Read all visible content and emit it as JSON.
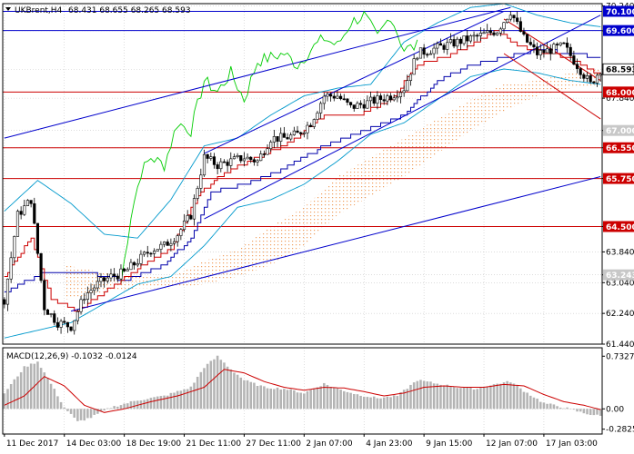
{
  "header": {
    "symbol": "UKBrent,H4",
    "ohlc": "68.431 68.655 68.265 68.593"
  },
  "colors": {
    "background": "#ffffff",
    "grid": "#c8c8c8",
    "candle": "#000000",
    "level_line": "#cc0000",
    "level_tag_red": "#cc0000",
    "level_tag_blue": "#0000cc",
    "level_tag_gray": "#c8c8c8",
    "current_price_tag": "#ffffff",
    "blue_channel": "#0000cc",
    "red_channel": "#cc0000",
    "chikou": "#00cc00",
    "bollinger": "#0099cc",
    "kijun": "#0000aa",
    "tenkan": "#cc0000",
    "cloud": "#f0b080",
    "macd_hist": "#b4b4b4",
    "macd_signal": "#cc0000"
  },
  "chart_data": [
    {
      "type": "candlestick",
      "title": "UKBrent,H4",
      "price_range": [
        61.44,
        70.3
      ],
      "y_ticks": [
        "70.240",
        "69.594",
        "68.593",
        "67.840",
        "67.000",
        "66.550",
        "65.750",
        "64.500",
        "63.840",
        "63.243",
        "63.040",
        "62.240",
        "61.440"
      ],
      "level_tags": [
        {
          "label": "70.100",
          "value": 70.1,
          "style": "blue"
        },
        {
          "label": "69.600",
          "value": 69.6,
          "style": "blue"
        },
        {
          "label": "68.593",
          "value": 68.593,
          "style": "current"
        },
        {
          "label": "68.000",
          "value": 68.0,
          "style": "red"
        },
        {
          "label": "67.000",
          "value": 67.0,
          "style": "gray"
        },
        {
          "label": "66.550",
          "value": 66.55,
          "style": "red"
        },
        {
          "label": "65.750",
          "value": 65.75,
          "style": "red"
        },
        {
          "label": "64.500",
          "value": 64.5,
          "style": "red"
        },
        {
          "label": "63.243",
          "value": 63.243,
          "style": "gray"
        }
      ],
      "horizontal_levels": [
        {
          "value": 70.1,
          "color": "#0000cc"
        },
        {
          "value": 69.6,
          "color": "#0000cc"
        },
        {
          "value": 68.0,
          "color": "#cc0000"
        },
        {
          "value": 66.55,
          "color": "#cc0000"
        },
        {
          "value": 65.75,
          "color": "#cc0000"
        },
        {
          "value": 64.5,
          "color": "#cc0000"
        }
      ],
      "x_labels": [
        "11 Dec 2017",
        "14 Dec 03:00",
        "18 Dec 19:00",
        "21 Dec 11:00",
        "27 Dec 11:00",
        "2 Jan 07:00",
        "4 Jan 23:00",
        "9 Jan 15:00",
        "12 Jan 07:00",
        "17 Jan 03:00"
      ],
      "x_label_bars": [
        0,
        18,
        36,
        54,
        72,
        90,
        108,
        126,
        144,
        162
      ],
      "bars": 180,
      "close_path": [
        [
          0,
          62.6
        ],
        [
          4,
          64.8
        ],
        [
          8,
          65.2
        ],
        [
          12,
          62.4
        ],
        [
          16,
          62.0
        ],
        [
          20,
          61.9
        ],
        [
          24,
          62.7
        ],
        [
          28,
          63.0
        ],
        [
          32,
          63.2
        ],
        [
          36,
          63.3
        ],
        [
          40,
          63.6
        ],
        [
          44,
          63.9
        ],
        [
          48,
          64.0
        ],
        [
          52,
          64.3
        ],
        [
          56,
          64.8
        ],
        [
          60,
          66.3
        ],
        [
          64,
          66.1
        ],
        [
          68,
          66.2
        ],
        [
          72,
          66.3
        ],
        [
          76,
          66.2
        ],
        [
          80,
          66.8
        ],
        [
          84,
          66.8
        ],
        [
          88,
          66.9
        ],
        [
          92,
          67.2
        ],
        [
          96,
          67.9
        ],
        [
          100,
          67.9
        ],
        [
          104,
          67.6
        ],
        [
          108,
          67.7
        ],
        [
          112,
          67.8
        ],
        [
          116,
          67.9
        ],
        [
          120,
          68.1
        ],
        [
          124,
          69.0
        ],
        [
          128,
          69.1
        ],
        [
          132,
          69.2
        ],
        [
          136,
          69.3
        ],
        [
          140,
          69.4
        ],
        [
          144,
          69.5
        ],
        [
          148,
          69.6
        ],
        [
          152,
          70.1
        ],
        [
          156,
          69.4
        ],
        [
          160,
          69.0
        ],
        [
          164,
          69.1
        ],
        [
          168,
          69.2
        ],
        [
          172,
          68.7
        ],
        [
          176,
          68.2
        ],
        [
          179,
          68.593
        ]
      ],
      "chikou_path": [
        [
          35,
          63.0
        ],
        [
          38,
          64.8
        ],
        [
          41,
          65.9
        ],
        [
          44,
          66.3
        ],
        [
          48,
          66.1
        ],
        [
          52,
          67.2
        ],
        [
          56,
          67.0
        ],
        [
          60,
          68.3
        ],
        [
          64,
          68.0
        ],
        [
          68,
          68.5
        ],
        [
          72,
          67.8
        ],
        [
          76,
          68.8
        ],
        [
          80,
          68.9
        ],
        [
          84,
          69.0
        ],
        [
          88,
          68.7
        ],
        [
          92,
          69.1
        ],
        [
          96,
          69.4
        ],
        [
          100,
          69.2
        ],
        [
          104,
          69.8
        ],
        [
          108,
          70.0
        ],
        [
          112,
          69.4
        ],
        [
          116,
          70.0
        ],
        [
          120,
          69.1
        ],
        [
          124,
          69.2
        ]
      ],
      "bb_upper_path": [
        [
          0,
          64.9
        ],
        [
          10,
          65.7
        ],
        [
          20,
          65.1
        ],
        [
          30,
          64.3
        ],
        [
          40,
          64.2
        ],
        [
          50,
          65.2
        ],
        [
          60,
          66.6
        ],
        [
          70,
          66.8
        ],
        [
          80,
          67.4
        ],
        [
          90,
          67.9
        ],
        [
          100,
          68.1
        ],
        [
          110,
          68.2
        ],
        [
          120,
          69.3
        ],
        [
          130,
          69.8
        ],
        [
          140,
          70.2
        ],
        [
          150,
          70.3
        ],
        [
          160,
          70.0
        ],
        [
          170,
          69.8
        ],
        [
          179,
          69.7
        ]
      ],
      "bb_lower_path": [
        [
          0,
          61.6
        ],
        [
          10,
          61.8
        ],
        [
          20,
          62.0
        ],
        [
          30,
          62.5
        ],
        [
          40,
          63.0
        ],
        [
          50,
          63.2
        ],
        [
          60,
          64.0
        ],
        [
          70,
          65.0
        ],
        [
          80,
          65.2
        ],
        [
          90,
          65.6
        ],
        [
          100,
          66.2
        ],
        [
          110,
          66.9
        ],
        [
          120,
          67.2
        ],
        [
          130,
          67.8
        ],
        [
          140,
          68.4
        ],
        [
          150,
          68.6
        ],
        [
          160,
          68.5
        ],
        [
          170,
          68.3
        ],
        [
          179,
          68.2
        ]
      ],
      "kijun_path": [
        [
          0,
          62.8
        ],
        [
          12,
          63.3
        ],
        [
          24,
          63.3
        ],
        [
          36,
          63.1
        ],
        [
          48,
          63.5
        ],
        [
          56,
          64.2
        ],
        [
          62,
          65.4
        ],
        [
          72,
          65.6
        ],
        [
          84,
          66.0
        ],
        [
          96,
          66.6
        ],
        [
          108,
          67.0
        ],
        [
          120,
          67.4
        ],
        [
          130,
          68.3
        ],
        [
          140,
          68.7
        ],
        [
          150,
          68.9
        ],
        [
          160,
          69.1
        ],
        [
          170,
          69.0
        ],
        [
          179,
          68.9
        ]
      ],
      "tenkan_path": [
        [
          0,
          63.2
        ],
        [
          8,
          64.2
        ],
        [
          14,
          62.6
        ],
        [
          22,
          62.3
        ],
        [
          30,
          62.8
        ],
        [
          40,
          63.4
        ],
        [
          50,
          63.9
        ],
        [
          58,
          65.3
        ],
        [
          66,
          65.9
        ],
        [
          76,
          66.3
        ],
        [
          86,
          66.7
        ],
        [
          96,
          67.4
        ],
        [
          106,
          67.4
        ],
        [
          116,
          67.8
        ],
        [
          124,
          68.7
        ],
        [
          132,
          68.9
        ],
        [
          140,
          69.2
        ],
        [
          148,
          69.6
        ],
        [
          154,
          69.2
        ],
        [
          162,
          69.0
        ],
        [
          170,
          68.9
        ],
        [
          179,
          68.4
        ]
      ],
      "cloud_top_path": [
        [
          18,
          63.5
        ],
        [
          30,
          63.3
        ],
        [
          40,
          63.2
        ],
        [
          50,
          63.2
        ],
        [
          60,
          63.6
        ],
        [
          70,
          63.9
        ],
        [
          80,
          64.5
        ],
        [
          90,
          65.0
        ],
        [
          100,
          65.8
        ],
        [
          110,
          66.3
        ],
        [
          120,
          66.8
        ],
        [
          130,
          67.3
        ],
        [
          140,
          67.8
        ],
        [
          150,
          68.2
        ],
        [
          160,
          68.3
        ],
        [
          170,
          68.5
        ],
        [
          179,
          68.6
        ]
      ],
      "cloud_bottom_path": [
        [
          18,
          62.6
        ],
        [
          30,
          62.8
        ],
        [
          40,
          62.9
        ],
        [
          50,
          62.9
        ],
        [
          60,
          63.0
        ],
        [
          70,
          63.2
        ],
        [
          80,
          63.5
        ],
        [
          90,
          64.0
        ],
        [
          100,
          64.8
        ],
        [
          110,
          65.3
        ],
        [
          120,
          65.8
        ],
        [
          130,
          66.4
        ],
        [
          140,
          67.0
        ],
        [
          150,
          67.5
        ],
        [
          160,
          67.9
        ],
        [
          170,
          68.1
        ],
        [
          179,
          68.2
        ]
      ],
      "blue_channel_lines": [
        {
          "from": [
            0,
            66.8
          ],
          "to": [
            152,
            70.2
          ]
        },
        {
          "from": [
            20,
            62.3
          ],
          "to": [
            179,
            65.8
          ]
        },
        {
          "from": [
            60,
            66.4
          ],
          "to": [
            150,
            70.1
          ]
        },
        {
          "from": [
            60,
            64.7
          ],
          "to": [
            179,
            70.0
          ]
        }
      ],
      "red_channel_lines": [
        {
          "from": [
            150,
            69.9
          ],
          "to": [
            179,
            68.3
          ]
        },
        {
          "from": [
            150,
            69.0
          ],
          "to": [
            179,
            67.3
          ]
        }
      ]
    },
    {
      "type": "macd",
      "title": "MACD(12,26,9) -0.1032 -0.0124",
      "y_ticks": [
        "0.7327",
        "0.00",
        "-0.2825"
      ],
      "y_range": [
        -0.35,
        0.85
      ],
      "histogram_path": [
        [
          0,
          0.22
        ],
        [
          6,
          0.58
        ],
        [
          10,
          0.66
        ],
        [
          14,
          0.35
        ],
        [
          18,
          0.02
        ],
        [
          22,
          -0.18
        ],
        [
          26,
          -0.12
        ],
        [
          32,
          0.02
        ],
        [
          40,
          0.12
        ],
        [
          48,
          0.18
        ],
        [
          56,
          0.3
        ],
        [
          60,
          0.58
        ],
        [
          64,
          0.73
        ],
        [
          68,
          0.55
        ],
        [
          72,
          0.4
        ],
        [
          78,
          0.3
        ],
        [
          84,
          0.28
        ],
        [
          90,
          0.22
        ],
        [
          96,
          0.35
        ],
        [
          100,
          0.28
        ],
        [
          106,
          0.2
        ],
        [
          112,
          0.15
        ],
        [
          118,
          0.18
        ],
        [
          124,
          0.4
        ],
        [
          130,
          0.35
        ],
        [
          136,
          0.3
        ],
        [
          142,
          0.28
        ],
        [
          148,
          0.35
        ],
        [
          152,
          0.38
        ],
        [
          156,
          0.25
        ],
        [
          162,
          0.08
        ],
        [
          168,
          0.02
        ],
        [
          174,
          -0.06
        ],
        [
          179,
          -0.1
        ]
      ],
      "signal_path": [
        [
          0,
          0.05
        ],
        [
          6,
          0.18
        ],
        [
          12,
          0.45
        ],
        [
          18,
          0.32
        ],
        [
          24,
          0.05
        ],
        [
          30,
          -0.05
        ],
        [
          36,
          0.0
        ],
        [
          44,
          0.1
        ],
        [
          52,
          0.18
        ],
        [
          60,
          0.3
        ],
        [
          66,
          0.55
        ],
        [
          72,
          0.5
        ],
        [
          78,
          0.38
        ],
        [
          84,
          0.3
        ],
        [
          90,
          0.26
        ],
        [
          96,
          0.3
        ],
        [
          102,
          0.29
        ],
        [
          108,
          0.24
        ],
        [
          114,
          0.18
        ],
        [
          120,
          0.22
        ],
        [
          126,
          0.3
        ],
        [
          132,
          0.32
        ],
        [
          138,
          0.3
        ],
        [
          144,
          0.3
        ],
        [
          150,
          0.34
        ],
        [
          156,
          0.32
        ],
        [
          162,
          0.2
        ],
        [
          168,
          0.1
        ],
        [
          174,
          0.05
        ],
        [
          179,
          -0.01
        ]
      ]
    }
  ]
}
